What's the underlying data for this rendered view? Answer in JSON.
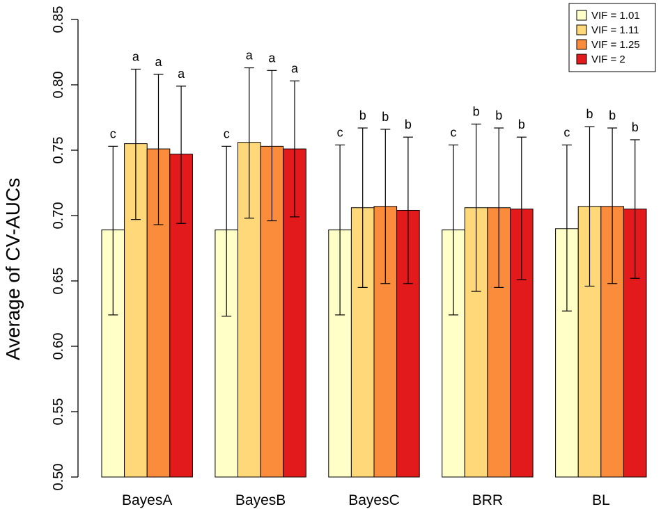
{
  "chart_data": {
    "type": "bar",
    "title": "",
    "xlabel": "",
    "ylabel": "Average of CV-AUCs",
    "ylim": [
      0.5,
      0.85
    ],
    "yticks": [
      "0.50",
      "0.55",
      "0.60",
      "0.65",
      "0.70",
      "0.75",
      "0.80",
      "0.85"
    ],
    "ytick_values": [
      0.5,
      0.55,
      0.6,
      0.65,
      0.7,
      0.75,
      0.8,
      0.85
    ],
    "categories": [
      "BayesA",
      "BayesB",
      "BayesC",
      "BRR",
      "BL"
    ],
    "legend_position": "top-right",
    "series": [
      {
        "name": "VIF = 1.01",
        "color": "#FFFFC8",
        "values": [
          0.689,
          0.689,
          0.689,
          0.689,
          0.69
        ],
        "err_low": [
          0.624,
          0.623,
          0.624,
          0.624,
          0.627
        ],
        "err_high": [
          0.753,
          0.753,
          0.754,
          0.754,
          0.754
        ],
        "letters": [
          "c",
          "c",
          "c",
          "c",
          "c"
        ]
      },
      {
        "name": "VIF = 1.11",
        "color": "#FFD87A",
        "values": [
          0.755,
          0.756,
          0.706,
          0.706,
          0.707
        ],
        "err_low": [
          0.697,
          0.698,
          0.645,
          0.642,
          0.646
        ],
        "err_high": [
          0.812,
          0.813,
          0.767,
          0.77,
          0.768
        ],
        "letters": [
          "a",
          "a",
          "b",
          "b",
          "b"
        ]
      },
      {
        "name": "VIF = 1.25",
        "color": "#FB8C3C",
        "values": [
          0.751,
          0.753,
          0.707,
          0.706,
          0.707
        ],
        "err_low": [
          0.693,
          0.696,
          0.648,
          0.645,
          0.648
        ],
        "err_high": [
          0.808,
          0.811,
          0.766,
          0.767,
          0.767
        ],
        "letters": [
          "a",
          "a",
          "b",
          "b",
          "b"
        ]
      },
      {
        "name": "VIF = 2",
        "color": "#E31A1C",
        "values": [
          0.747,
          0.751,
          0.704,
          0.705,
          0.705
        ],
        "err_low": [
          0.694,
          0.699,
          0.648,
          0.651,
          0.652
        ],
        "err_high": [
          0.799,
          0.803,
          0.76,
          0.76,
          0.758
        ],
        "letters": [
          "a",
          "a",
          "b",
          "b",
          "b"
        ]
      }
    ]
  }
}
